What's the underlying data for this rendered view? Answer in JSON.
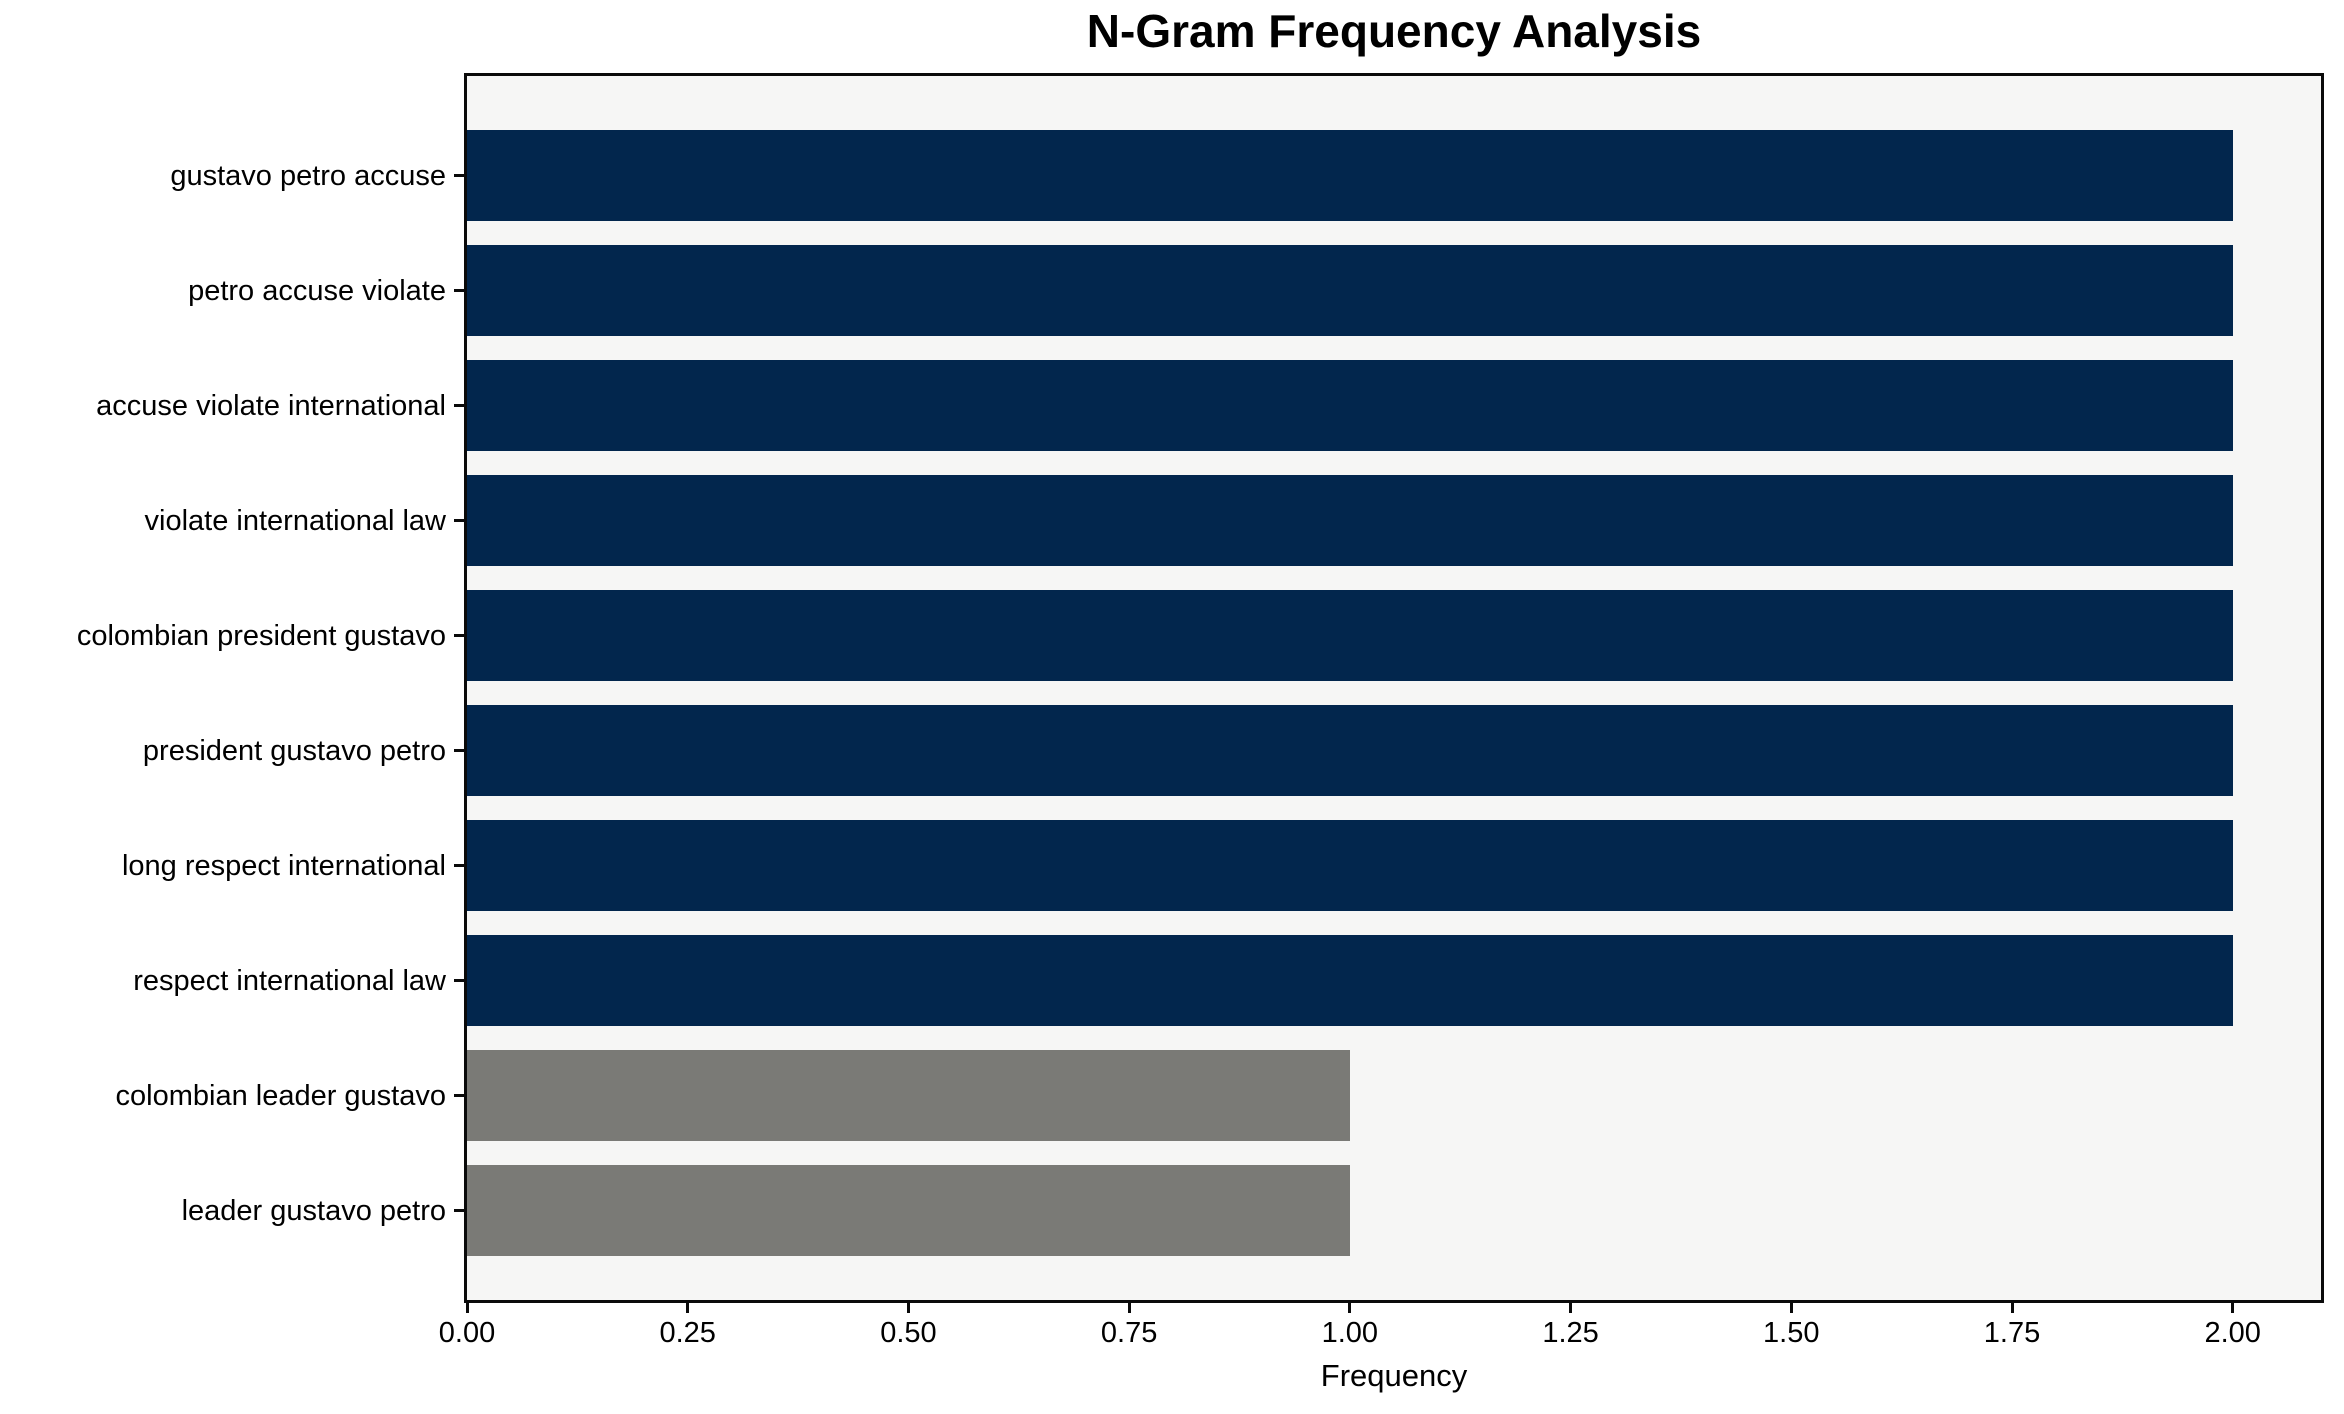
{
  "chart_data": {
    "type": "bar",
    "orientation": "horizontal",
    "title": "N-Gram Frequency Analysis",
    "xlabel": "Frequency",
    "ylabel": "",
    "categories": [
      "gustavo petro accuse",
      "petro accuse violate",
      "accuse violate international",
      "violate international law",
      "colombian president gustavo",
      "president gustavo petro",
      "long respect international",
      "respect international law",
      "colombian leader gustavo",
      "leader gustavo petro"
    ],
    "values": [
      2,
      2,
      2,
      2,
      2,
      2,
      2,
      2,
      1,
      1
    ],
    "bar_colors": [
      "#02264d",
      "#02264d",
      "#02264d",
      "#02264d",
      "#02264d",
      "#02264d",
      "#02264d",
      "#02264d",
      "#7a7a76",
      "#7a7a76"
    ],
    "xlim": [
      0,
      2.1
    ],
    "x_ticks": [
      "0.00",
      "0.25",
      "0.50",
      "0.75",
      "1.00",
      "1.25",
      "1.50",
      "1.75",
      "2.00"
    ],
    "grid": false,
    "legend": null,
    "colors": {
      "high_frequency_bar": "#02264d",
      "low_frequency_bar": "#7a7a76",
      "plot_background": "#f6f6f5",
      "figure_background": "#ffffff",
      "axis_and_text": "#000000"
    }
  }
}
